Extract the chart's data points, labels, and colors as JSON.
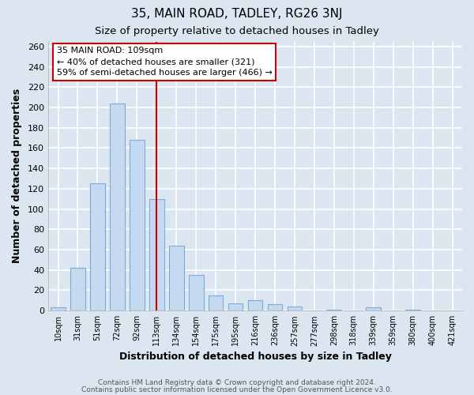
{
  "title1": "35, MAIN ROAD, TADLEY, RG26 3NJ",
  "title2": "Size of property relative to detached houses in Tadley",
  "xlabel": "Distribution of detached houses by size in Tadley",
  "ylabel": "Number of detached properties",
  "bin_labels": [
    "10sqm",
    "31sqm",
    "51sqm",
    "72sqm",
    "92sqm",
    "113sqm",
    "134sqm",
    "154sqm",
    "175sqm",
    "195sqm",
    "216sqm",
    "236sqm",
    "257sqm",
    "277sqm",
    "298sqm",
    "318sqm",
    "339sqm",
    "359sqm",
    "380sqm",
    "400sqm",
    "421sqm"
  ],
  "bar_heights": [
    3,
    42,
    125,
    204,
    168,
    110,
    64,
    35,
    15,
    7,
    10,
    6,
    4,
    0,
    1,
    0,
    3,
    0,
    1,
    0,
    0
  ],
  "bar_color": "#c5d9f1",
  "bar_edge_color": "#7badd4",
  "background_color": "#dce6f1",
  "plot_bg_color": "#dce6f1",
  "grid_color": "#ffffff",
  "vline_color": "#cc0000",
  "vline_x": 5.0,
  "annotation_title": "35 MAIN ROAD: 109sqm",
  "annotation_line1": "← 40% of detached houses are smaller (321)",
  "annotation_line2": "59% of semi-detached houses are larger (466) →",
  "annotation_box_color": "#ffffff",
  "annotation_box_edge_color": "#cc0000",
  "ylim": [
    0,
    265
  ],
  "yticks": [
    0,
    20,
    40,
    60,
    80,
    100,
    120,
    140,
    160,
    180,
    200,
    220,
    240,
    260
  ],
  "bar_width": 0.75,
  "footer1": "Contains HM Land Registry data © Crown copyright and database right 2024.",
  "footer2": "Contains public sector information licensed under the Open Government Licence v3.0."
}
